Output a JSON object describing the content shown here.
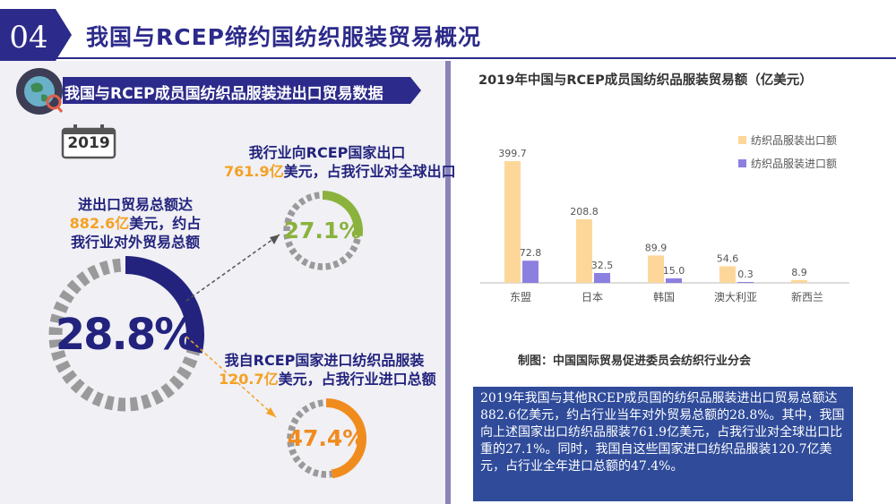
{
  "header": {
    "number": "04",
    "title": "我国与RCEP缔约国纺织服装贸易概况"
  },
  "left": {
    "banner": "我国与RCEP成员国纺织品服装进出口贸易数据",
    "year": "2019",
    "total": {
      "line1": "进出口贸易总额达",
      "amount": "882.6亿",
      "line2_rest": "美元，约占",
      "line3": "我行业对外贸易总额",
      "percent_text": "28.8%",
      "percent": 28.8
    },
    "export": {
      "line1": "我行业向RCEP国家出口",
      "amount": "761.9亿",
      "line2_rest": "美元，占我行业对全球出口",
      "percent_text": "27.1%",
      "percent": 27.1
    },
    "import": {
      "line1": "我自RCEP国家进口纺织品服装",
      "amount": "120.7亿",
      "line2_rest": "美元，占我行业进口总额",
      "percent_text": "47.4%",
      "percent": 47.4
    }
  },
  "chart_data": {
    "type": "bar",
    "title": "2019年中国与RCEP成员国纺织品服装贸易额（亿美元）",
    "categories": [
      "东盟",
      "日本",
      "韩国",
      "澳大利亚",
      "新西兰"
    ],
    "series": [
      {
        "name": "纺织品服装出口额",
        "values": [
          399.7,
          208.8,
          89.9,
          54.6,
          8.9
        ],
        "color": "#fdd79a"
      },
      {
        "name": "纺织品服装进口额",
        "values": [
          72.8,
          32.5,
          15.0,
          0.3,
          null
        ],
        "color": "#8b7fe0"
      }
    ],
    "data_labels": {
      "export": [
        "399.7",
        "208.8",
        "89.9",
        "54.6",
        "8.9"
      ],
      "import": [
        "72.8",
        "32.5",
        "15.0",
        "0.3",
        ""
      ]
    },
    "legend_position": "top-right",
    "grid": false,
    "ylim": [
      0,
      420
    ]
  },
  "source": "制图：中国国际贸易促进委员会纺织行业分会",
  "summary": "2019年我国与其他RCEP成员国的纺织品服装进出口贸易总额达882.6亿美元，约占行业当年对外贸易总额的28.8%。其中，我国向上述国家出口纺织品服装761.9亿美元，占我行业对全球出口比重的27.1%。同时，我国自这些国家进口纺织品服装120.7亿美元，占行业全年进口总额的47.4%。",
  "colors": {
    "navy": "#23237e",
    "orange": "#f5a123",
    "green": "#8ab23c",
    "donut_gray": "#9a9a9a",
    "summary_bg": "#2f4b9a"
  }
}
